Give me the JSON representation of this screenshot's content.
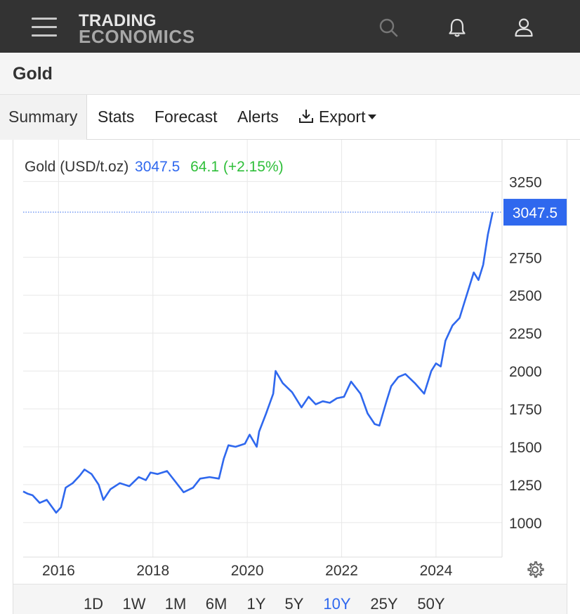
{
  "header": {
    "logo_line1": "TRADING",
    "logo_line2": "ECONOMICS",
    "icons": [
      "menu-icon",
      "search-icon",
      "bell-icon",
      "user-icon"
    ]
  },
  "page": {
    "title": "Gold"
  },
  "tabs": [
    {
      "label": "Summary",
      "active": true
    },
    {
      "label": "Stats"
    },
    {
      "label": "Forecast"
    },
    {
      "label": "Alerts"
    },
    {
      "label": "Export",
      "icon": "download-icon",
      "dropdown": true
    }
  ],
  "legend": {
    "name": "Gold (USD/t.oz)",
    "value": "3047.5",
    "change": "64.1 (+2.15%)"
  },
  "ranges": [
    "1D",
    "1W",
    "1M",
    "6M",
    "1Y",
    "5Y",
    "10Y",
    "25Y",
    "50Y"
  ],
  "active_range": "10Y",
  "colors": {
    "line": "#2f68ee",
    "last_price_tag": "#2f68ee",
    "change_positive": "#2fbf3a",
    "header_bg": "#333333"
  },
  "chart_data": {
    "type": "line",
    "series": [
      {
        "name": "Gold (USD/t.oz)",
        "x": [
          2015.25,
          2015.35,
          2015.45,
          2015.6,
          2015.75,
          2015.95,
          2016.05,
          2016.15,
          2016.3,
          2016.45,
          2016.55,
          2016.7,
          2016.85,
          2016.95,
          2017.1,
          2017.3,
          2017.5,
          2017.7,
          2017.85,
          2017.95,
          2018.1,
          2018.3,
          2018.5,
          2018.65,
          2018.85,
          2019.0,
          2019.2,
          2019.4,
          2019.5,
          2019.6,
          2019.75,
          2019.95,
          2020.05,
          2020.2,
          2020.25,
          2020.4,
          2020.55,
          2020.6,
          2020.75,
          2020.95,
          2021.15,
          2021.3,
          2021.45,
          2021.6,
          2021.75,
          2021.9,
          2022.05,
          2022.2,
          2022.4,
          2022.55,
          2022.7,
          2022.8,
          2022.95,
          2023.05,
          2023.2,
          2023.35,
          2023.55,
          2023.75,
          2023.9,
          2024.0,
          2024.1,
          2024.2,
          2024.35,
          2024.5,
          2024.6,
          2024.8,
          2024.9,
          2025.0,
          2025.1,
          2025.2
        ],
        "values": [
          1205,
          1190,
          1180,
          1130,
          1150,
          1065,
          1100,
          1230,
          1260,
          1310,
          1350,
          1320,
          1250,
          1150,
          1220,
          1260,
          1240,
          1300,
          1280,
          1330,
          1320,
          1340,
          1260,
          1200,
          1230,
          1290,
          1300,
          1290,
          1420,
          1510,
          1500,
          1520,
          1580,
          1500,
          1600,
          1720,
          1850,
          2000,
          1920,
          1860,
          1760,
          1830,
          1780,
          1800,
          1790,
          1820,
          1830,
          1930,
          1850,
          1720,
          1650,
          1640,
          1800,
          1900,
          1960,
          1980,
          1920,
          1850,
          2000,
          2050,
          2030,
          2200,
          2300,
          2350,
          2450,
          2650,
          2600,
          2700,
          2900,
          3047.5
        ]
      }
    ],
    "last_value": 3047.5,
    "x_ticks": [
      "2016",
      "2018",
      "2020",
      "2022",
      "2024"
    ],
    "y_ticks": [
      "1000",
      "1250",
      "1500",
      "1750",
      "2000",
      "2250",
      "2500",
      "2750",
      "3250"
    ],
    "ylim": [
      800,
      3400
    ],
    "xlim": [
      2015.25,
      2025.4
    ],
    "grid": true,
    "legend_placement": "top-left"
  }
}
